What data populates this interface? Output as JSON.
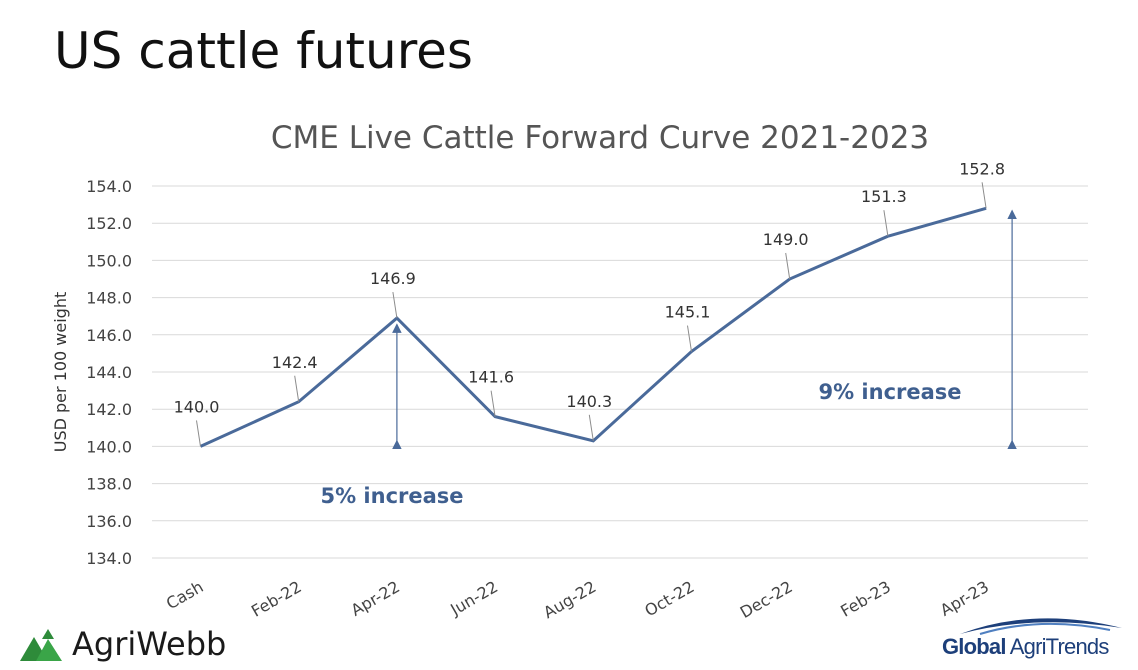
{
  "slide": {
    "title": "US cattle futures"
  },
  "chart_data": {
    "type": "line",
    "title": "CME Live Cattle Forward Curve 2021-2023",
    "ylabel": "USD per 100 weight",
    "xlabel": "",
    "categories": [
      "Cash",
      "Feb-22",
      "Apr-22",
      "Jun-22",
      "Aug-22",
      "Oct-22",
      "Dec-22",
      "Feb-23",
      "Apr-23"
    ],
    "values": [
      140.0,
      142.4,
      146.9,
      141.6,
      140.3,
      145.1,
      149.0,
      151.3,
      152.8
    ],
    "data_labels": [
      "140.0",
      "142.4",
      "146.9",
      "141.6",
      "140.3",
      "145.1",
      "149.0",
      "151.3",
      "152.8"
    ],
    "ylim": [
      134.0,
      154.0
    ],
    "ytick_step": 2.0,
    "yticks": [
      "134.0",
      "136.0",
      "138.0",
      "140.0",
      "142.0",
      "144.0",
      "146.0",
      "148.0",
      "150.0",
      "152.0",
      "154.0"
    ],
    "grid": true,
    "legend": "none",
    "line_color": "#4a6a9a",
    "annotations": [
      {
        "text": "5% increase",
        "category": "Apr-22",
        "from": 140.0,
        "to": 146.9
      },
      {
        "text": "9% increase",
        "category": "Apr-23",
        "from": 140.0,
        "to": 152.8
      }
    ]
  },
  "logos": {
    "left": {
      "name": "AgriWebb",
      "color": "#2e8b3a"
    },
    "right": {
      "name_bold": "Global",
      "name_rest": " AgriTrends",
      "color": "#1d3f7a"
    }
  }
}
